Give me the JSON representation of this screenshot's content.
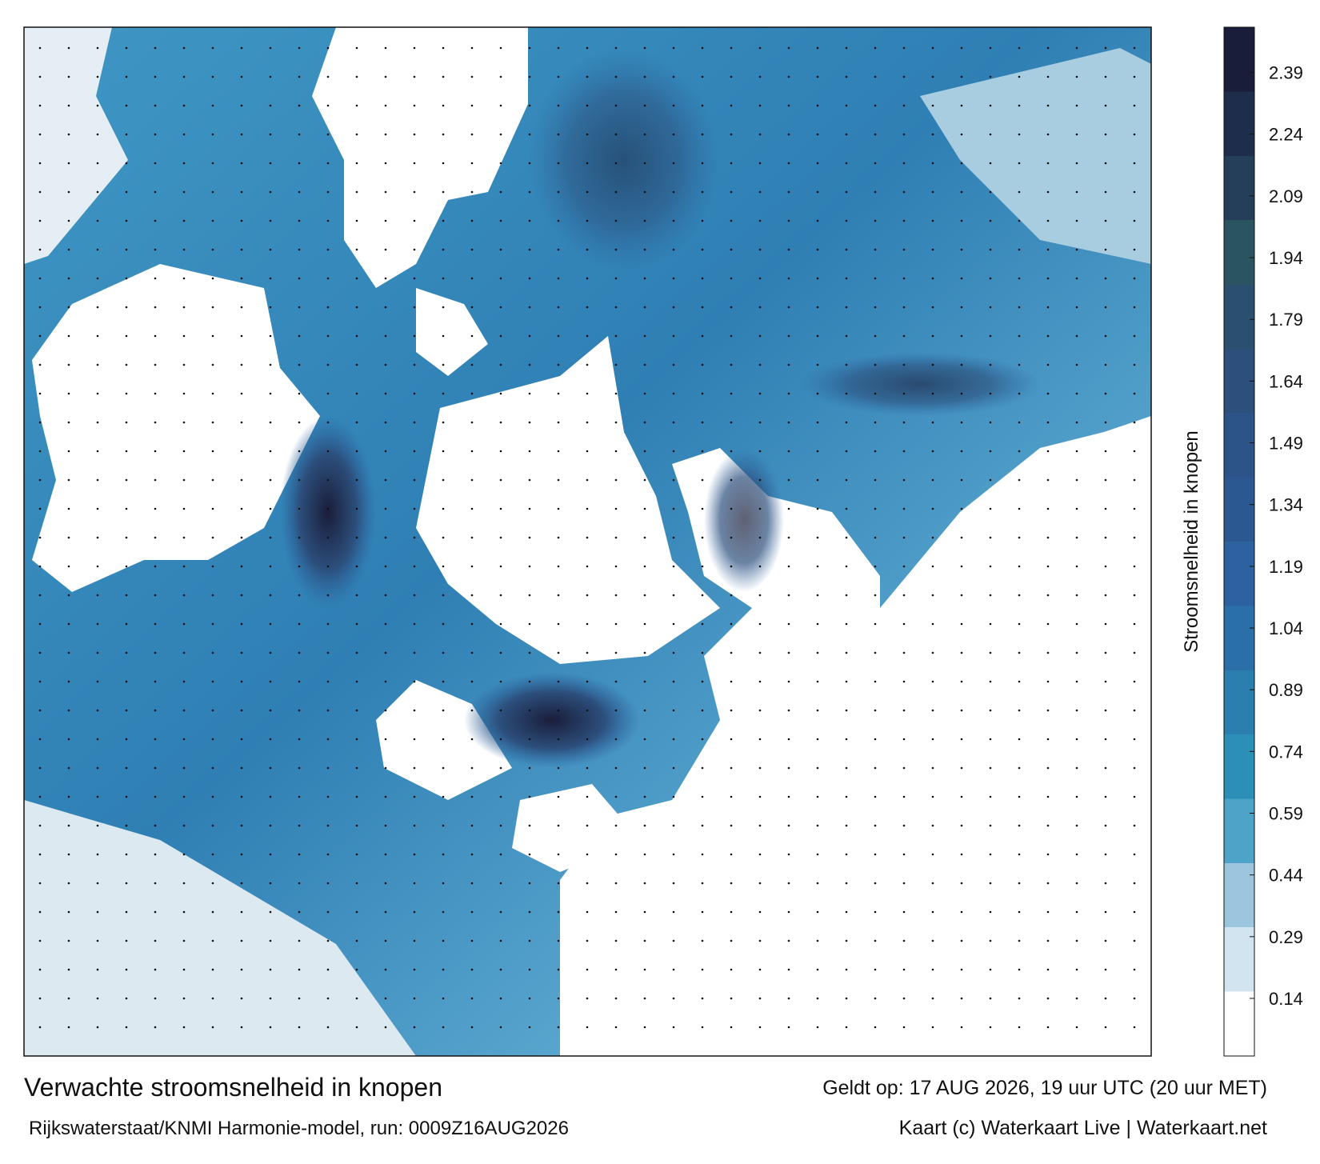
{
  "map": {
    "title": "Verwachte stroomsnelheid in knopen",
    "subtitle": "Rijkswaterstaat/KNMI Harmonie-model, run: 0009Z16AUG2026",
    "valid": "Geldt op: 17 AUG 2026, 19 uur UTC (20 uur MET)",
    "credit": "Kaart (c) Waterkaart Live | Waterkaart.net",
    "colorbar": {
      "label": "Stroomsnelheid in knopen",
      "range": [
        0,
        2.5
      ],
      "ticks": [
        0.14,
        0.29,
        0.44,
        0.59,
        0.74,
        0.89,
        1.04,
        1.19,
        1.34,
        1.49,
        1.64,
        1.79,
        1.94,
        2.09,
        2.24,
        2.39
      ],
      "colors": [
        "#ffffff",
        "#d2e4ef",
        "#9cc6dd",
        "#4ea3c9",
        "#2b8fb8",
        "#2a7fae",
        "#2b6fa8",
        "#2c62a0",
        "#2c5892",
        "#2c5488",
        "#2c4f7c",
        "#2b4f6e",
        "#2a5560",
        "#253f5a",
        "#1f2d4c",
        "#1a1d3a"
      ]
    }
  }
}
